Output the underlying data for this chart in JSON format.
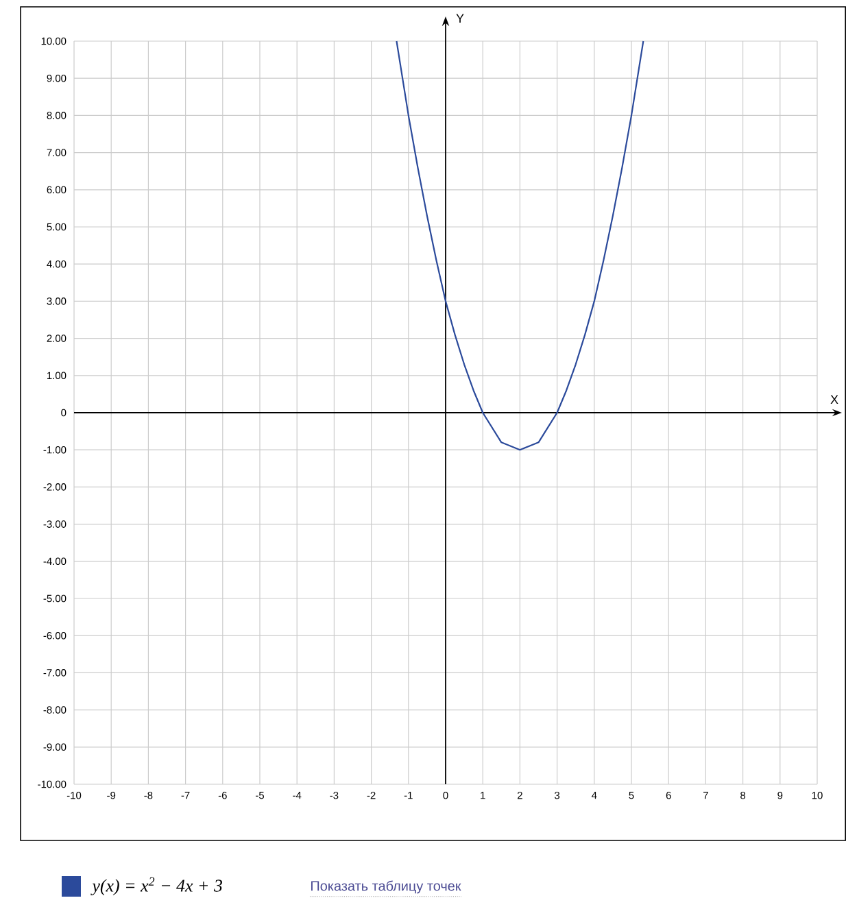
{
  "chart_data": {
    "type": "line",
    "xlabel": "X",
    "ylabel": "Y",
    "xlim": [
      -10,
      10
    ],
    "ylim": [
      -10,
      10
    ],
    "xticks": [
      -10,
      -9,
      -8,
      -7,
      -6,
      -5,
      -4,
      -3,
      -2,
      -1,
      0,
      1,
      2,
      3,
      4,
      5,
      6,
      7,
      8,
      9,
      10
    ],
    "yticks": [
      {
        "value": -10,
        "label": "-10.00"
      },
      {
        "value": -9,
        "label": "-9.00"
      },
      {
        "value": -8,
        "label": "-8.00"
      },
      {
        "value": -7,
        "label": "-7.00"
      },
      {
        "value": -6,
        "label": "-6.00"
      },
      {
        "value": -5,
        "label": "-5.00"
      },
      {
        "value": -4,
        "label": "-4.00"
      },
      {
        "value": -3,
        "label": "-3.00"
      },
      {
        "value": -2,
        "label": "-2.00"
      },
      {
        "value": -1,
        "label": "-1.00"
      },
      0,
      {
        "value": 1,
        "label": "1.00"
      },
      {
        "value": 2,
        "label": "2.00"
      },
      {
        "value": 3,
        "label": "3.00"
      },
      {
        "value": 4,
        "label": "4.00"
      },
      {
        "value": 5,
        "label": "5.00"
      },
      {
        "value": 6,
        "label": "6.00"
      },
      {
        "value": 7,
        "label": "7.00"
      },
      {
        "value": 8,
        "label": "8.00"
      },
      {
        "value": 9,
        "label": "9.00"
      },
      {
        "value": 10,
        "label": "10.00"
      }
    ],
    "grid": true,
    "legend": "bottom left",
    "marker": "none",
    "line_style": "solid",
    "annotations": [
      "Показать таблицу точек"
    ],
    "series": [
      {
        "name": "y(x) = x$^{2}$ − 4x + 3",
        "color": "#2b4a9b",
        "x": [
          -1.32,
          -1,
          -0.75,
          -0.5,
          -0.25,
          0,
          0.25,
          0.5,
          0.75,
          1,
          1.25,
          1.5,
          1.75,
          2,
          2.25,
          2.5,
          2.75,
          3,
          3.25,
          3.5,
          3.75,
          4,
          4.25,
          4.5,
          4.75,
          5,
          5.32
        ],
        "values": [
          10,
          8,
          6.6,
          5.3,
          4.1,
          3,
          2.1,
          1.3,
          0.6,
          0,
          -0.4,
          -0.8,
          -0.9,
          -1,
          -0.9,
          -0.8,
          -0.4,
          0,
          0.6,
          1.3,
          2.1,
          3,
          4.1,
          5.3,
          6.6,
          8,
          10
        ]
      }
    ]
  }
}
